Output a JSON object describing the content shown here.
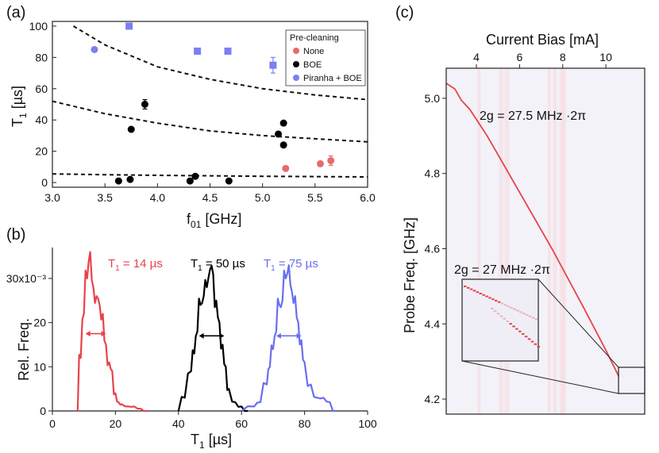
{
  "panel_labels": [
    "(a)",
    "(b)",
    "(c)"
  ],
  "chart_data": [
    {
      "panel": "(a)",
      "type": "scatter",
      "xlabel": "f",
      "xlabel_sub": "01",
      "xlabel_unit": " [GHz]",
      "ylabel": "T",
      "ylabel_sub": "1",
      "ylabel_unit": " [µs]",
      "xlim": [
        3.0,
        6.0
      ],
      "ylim": [
        -3,
        103
      ],
      "xticks": [
        3.0,
        3.5,
        4.0,
        4.5,
        5.0,
        5.5,
        6.0
      ],
      "xtick_labels": [
        "3.0",
        "3.5",
        "4.0",
        "4.5",
        "5.0",
        "5.5",
        "6.0"
      ],
      "yticks": [
        0,
        20,
        40,
        60,
        80,
        100
      ],
      "ytick_labels": [
        "0",
        "20",
        "40",
        "60",
        "80",
        "100"
      ],
      "legend_title": "Pre-cleaning",
      "legend_position": "top-right",
      "series": [
        {
          "name": "None",
          "color": "#e86a6a",
          "marker": "circle",
          "points": [
            [
              5.22,
              9
            ],
            [
              5.55,
              12
            ],
            [
              5.65,
              14
            ]
          ]
        },
        {
          "name": "BOE",
          "color": "#000000",
          "marker": "circle",
          "points": [
            [
              3.63,
              1
            ],
            [
              3.74,
              2
            ],
            [
              3.75,
              34
            ],
            [
              3.88,
              50
            ],
            [
              4.31,
              1
            ],
            [
              4.36,
              4
            ],
            [
              4.68,
              1
            ],
            [
              5.15,
              31
            ],
            [
              5.2,
              38
            ],
            [
              5.2,
              24
            ]
          ]
        },
        {
          "name": "Piranha + BOE",
          "color": "#7b7ff0",
          "marker": "circle",
          "points": [
            [
              3.4,
              85
            ]
          ]
        },
        {
          "name": "",
          "color": "#7b7ff0",
          "marker": "square",
          "points": [
            [
              3.73,
              100
            ],
            [
              4.38,
              84
            ],
            [
              4.67,
              84
            ],
            [
              5.1,
              75
            ]
          ]
        }
      ],
      "error_bars": [
        {
          "x": 3.88,
          "y": 50,
          "err": 3,
          "color": "#000000"
        },
        {
          "x": 5.1,
          "y": 75,
          "err": 5,
          "color": "#7b7ff0"
        },
        {
          "x": 5.65,
          "y": 14,
          "err": 3,
          "color": "#e86a6a"
        }
      ],
      "curves": [
        {
          "style": "dashed",
          "x": [
            3.2,
            3.5,
            4.0,
            4.5,
            5.0,
            5.5,
            6.0
          ],
          "y": [
            100,
            88,
            74,
            66,
            60,
            56,
            53
          ]
        },
        {
          "style": "dashed",
          "x": [
            3.0,
            3.5,
            4.0,
            4.5,
            5.0,
            5.5,
            6.0
          ],
          "y": [
            52,
            44,
            38,
            33,
            30,
            28,
            26
          ]
        },
        {
          "style": "dashed",
          "x": [
            3.0,
            3.5,
            4.0,
            4.5,
            5.0,
            5.5,
            6.0
          ],
          "y": [
            5.5,
            5,
            4.6,
            4.3,
            4,
            3.8,
            3.6
          ]
        }
      ]
    },
    {
      "panel": "(b)",
      "type": "line",
      "xlabel": "T",
      "xlabel_sub": "1",
      "xlabel_unit": " [µs]",
      "ylabel": "Rel. Freq.",
      "xlim": [
        0,
        100
      ],
      "ylim": [
        0,
        0.037
      ],
      "xticks": [
        0,
        20,
        40,
        60,
        80,
        100
      ],
      "xtick_labels": [
        "0",
        "20",
        "40",
        "60",
        "80",
        "100"
      ],
      "yticks": [
        0,
        0.01,
        0.02,
        0.03
      ],
      "ytick_labels": [
        "0",
        "10",
        "20",
        "30x10⁻³"
      ],
      "series": [
        {
          "name": "T₁ = 14 µs",
          "color": "#e8424a",
          "x": [
            8,
            9,
            10,
            11,
            12,
            13,
            14,
            15,
            16,
            17,
            18,
            19,
            20,
            21,
            22,
            24,
            26,
            28,
            30
          ],
          "y": [
            0.0,
            0.012,
            0.022,
            0.03,
            0.036,
            0.028,
            0.026,
            0.024,
            0.022,
            0.015,
            0.011,
            0.009,
            0.004,
            0.002,
            0.0015,
            0.001,
            0.001,
            0.0005,
            0.0
          ]
        },
        {
          "name": "T₁ = 50 µs",
          "color": "#000000",
          "x": [
            40,
            42,
            44,
            45,
            46,
            47,
            48,
            49,
            50,
            51,
            52,
            53,
            54,
            55,
            56,
            58,
            60,
            62
          ],
          "y": [
            0.0,
            0.003,
            0.009,
            0.013,
            0.018,
            0.024,
            0.026,
            0.028,
            0.032,
            0.031,
            0.025,
            0.02,
            0.015,
            0.01,
            0.005,
            0.002,
            0.001,
            0.0
          ]
        },
        {
          "name": "T₁ = 75 µs",
          "color": "#6a6ef0",
          "x": [
            60,
            64,
            66,
            68,
            69,
            70,
            71,
            72,
            73,
            74,
            75,
            76,
            77,
            78,
            79,
            80,
            82,
            84,
            86,
            88,
            90
          ],
          "y": [
            0.0,
            0.001,
            0.002,
            0.006,
            0.01,
            0.014,
            0.018,
            0.024,
            0.025,
            0.03,
            0.033,
            0.027,
            0.026,
            0.02,
            0.016,
            0.011,
            0.006,
            0.003,
            0.003,
            0.002,
            0.0
          ]
        }
      ],
      "fwhm_arrows": [
        {
          "x1": 10.5,
          "x2": 17,
          "y": 0.0175,
          "color": "#e8424a"
        },
        {
          "x1": 46.5,
          "x2": 54.5,
          "y": 0.017,
          "color": "#000000"
        },
        {
          "x1": 71,
          "x2": 79,
          "y": 0.017,
          "color": "#6a6ef0"
        }
      ],
      "labels": [
        {
          "series": 0,
          "text": "T",
          "sub": "1",
          "rest": " = 14 µs"
        },
        {
          "series": 1,
          "text": "T",
          "sub": "1",
          "rest": " = 50 µs"
        },
        {
          "series": 2,
          "text": "T",
          "sub": "1",
          "rest": " = 75 µs"
        }
      ]
    },
    {
      "panel": "(c)",
      "type": "heatmap",
      "top_xlabel": "Current Bias [mA]",
      "top_xlim": [
        2.6,
        11.8
      ],
      "top_xticks": [
        4,
        6,
        8,
        10
      ],
      "top_xtick_labels": [
        "4",
        "6",
        "8",
        "10"
      ],
      "ylabel": "Probe Freq. [GHz]",
      "ylim": [
        4.16,
        5.08
      ],
      "yticks": [
        4.2,
        4.4,
        4.6,
        4.8,
        5.0
      ],
      "ytick_labels": [
        "4.2",
        "4.4",
        "4.6",
        "4.8",
        "5.0"
      ],
      "trace": {
        "color": "#e8424a",
        "x": [
          2.6,
          3.0,
          3.3,
          3.7,
          4.5,
          6.0,
          7.5,
          9.0,
          10.0,
          10.6
        ],
        "y": [
          5.04,
          5.025,
          4.995,
          4.97,
          4.9,
          4.75,
          4.6,
          4.44,
          4.33,
          4.26
        ]
      },
      "annotations": [
        "2g = 27.5 MHz ·2π",
        "2g = 27 MHz ·2π"
      ],
      "inset_region": {
        "x": [
          10.6,
          11.7
        ],
        "y": [
          4.17,
          4.24
        ]
      }
    }
  ]
}
